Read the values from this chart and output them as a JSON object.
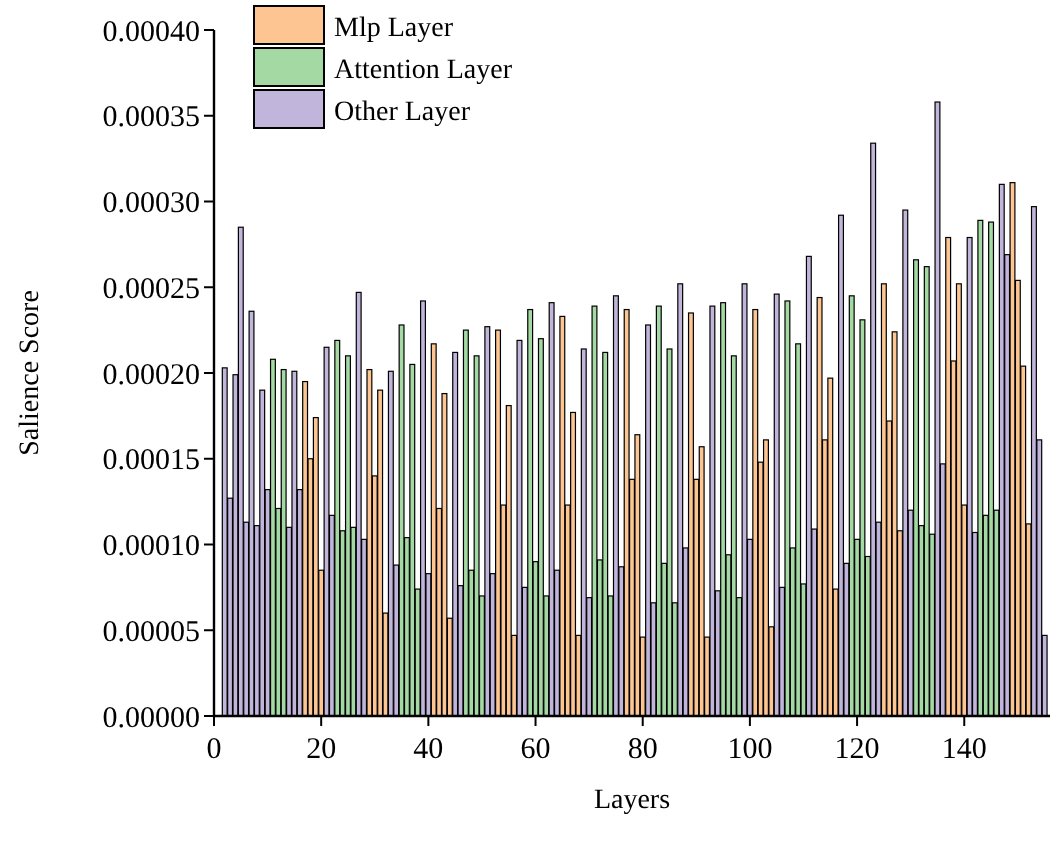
{
  "chart_data": {
    "type": "bar",
    "xlabel": "Layers",
    "ylabel": "Salience Score",
    "xlim": [
      0,
      156
    ],
    "xticks": [
      0,
      20,
      40,
      60,
      80,
      100,
      120,
      140
    ],
    "ylim": [
      0,
      0.0004
    ],
    "yticks": [
      {
        "value": 0,
        "label": "0.00000"
      },
      {
        "value": 5e-05,
        "label": "0.00005"
      },
      {
        "value": 0.0001,
        "label": "0.00010"
      },
      {
        "value": 0.00015,
        "label": "0.00015"
      },
      {
        "value": 0.0002,
        "label": "0.00020"
      },
      {
        "value": 0.00025,
        "label": "0.00025"
      },
      {
        "value": 0.0003,
        "label": "0.00030"
      },
      {
        "value": 0.00035,
        "label": "0.00035"
      },
      {
        "value": 0.0004,
        "label": "0.00040"
      }
    ],
    "legend": "top left",
    "grid": false,
    "series": [
      {
        "name": "Mlp Layer",
        "color": "#fcc592",
        "x": [
          17,
          18,
          19,
          20,
          29,
          30,
          31,
          32,
          41,
          42,
          43,
          44,
          53,
          54,
          55,
          56,
          65,
          66,
          67,
          68,
          77,
          78,
          79,
          80,
          89,
          90,
          91,
          92,
          101,
          102,
          103,
          104,
          113,
          114,
          115,
          116,
          125,
          126,
          127,
          128,
          137,
          138,
          139,
          140,
          149,
          150,
          151,
          152
        ],
        "values": [
          0.000195,
          0.00015,
          0.000174,
          8.5e-05,
          0.000202,
          0.00014,
          0.00019,
          6e-05,
          0.000217,
          0.000121,
          0.000188,
          5.7e-05,
          0.000225,
          0.000123,
          0.000181,
          4.7e-05,
          0.000233,
          0.000123,
          0.000177,
          4.7e-05,
          0.000237,
          0.000138,
          0.000164,
          4.6e-05,
          0.000235,
          0.000138,
          0.000157,
          4.6e-05,
          0.000237,
          0.000148,
          0.000161,
          5.2e-05,
          0.000244,
          0.000161,
          0.000197,
          7.4e-05,
          0.000252,
          0.000172,
          0.000224,
          0.000108,
          0.000279,
          0.000207,
          0.000252,
          0.000123,
          0.000311,
          0.000254,
          0.000204,
          0.000112
        ]
      },
      {
        "name": "Attention Layer",
        "color": "#a4d9a4",
        "x": [
          11,
          12,
          13,
          23,
          24,
          25,
          26,
          35,
          36,
          37,
          38,
          47,
          48,
          49,
          50,
          59,
          60,
          61,
          62,
          71,
          72,
          73,
          74,
          83,
          84,
          85,
          86,
          95,
          96,
          97,
          98,
          107,
          108,
          109,
          110,
          119,
          120,
          121,
          122,
          131,
          132,
          133,
          134,
          143,
          144,
          145,
          146
        ],
        "values": [
          0.000208,
          0.000121,
          0.000202,
          0.000219,
          0.000108,
          0.00021,
          0.00011,
          0.000228,
          0.000104,
          0.000205,
          7.4e-05,
          0.000225,
          8.5e-05,
          0.00021,
          7e-05,
          0.000237,
          9e-05,
          0.00022,
          7e-05,
          0.000239,
          9.1e-05,
          0.000212,
          7e-05,
          0.000239,
          8.9e-05,
          0.000214,
          6.6e-05,
          0.000241,
          9.4e-05,
          0.00021,
          6.9e-05,
          0.000242,
          9.8e-05,
          0.000217,
          7.7e-05,
          0.000245,
          0.000103,
          0.000231,
          9.3e-05,
          0.000266,
          0.000111,
          0.000262,
          0.000106,
          0.000289,
          0.000117,
          0.000288,
          0.00012
        ]
      },
      {
        "name": "Other Layer",
        "color": "#c1b5dc",
        "x": [
          2,
          3,
          4,
          5,
          6,
          7,
          8,
          9,
          10,
          14,
          15,
          16,
          21,
          22,
          27,
          28,
          33,
          34,
          39,
          40,
          45,
          46,
          51,
          52,
          57,
          58,
          63,
          64,
          69,
          70,
          75,
          76,
          81,
          82,
          87,
          88,
          93,
          94,
          99,
          100,
          105,
          106,
          111,
          112,
          117,
          118,
          123,
          124,
          129,
          130,
          135,
          136,
          141,
          142,
          147,
          148,
          153,
          154,
          155
        ],
        "values": [
          0.000203,
          0.000127,
          0.000199,
          0.000285,
          0.000113,
          0.000236,
          0.000111,
          0.00019,
          0.000132,
          0.00011,
          0.000201,
          0.000132,
          0.000215,
          0.000117,
          0.000247,
          0.000103,
          0.000201,
          8.8e-05,
          0.000242,
          8.3e-05,
          0.000212,
          7.6e-05,
          0.000227,
          8.3e-05,
          0.000219,
          7.5e-05,
          0.000241,
          8.5e-05,
          0.000214,
          6.9e-05,
          0.000245,
          8.7e-05,
          0.000228,
          6.6e-05,
          0.000252,
          9.8e-05,
          0.000239,
          7.3e-05,
          0.000252,
          0.000103,
          0.000246,
          7.5e-05,
          0.000268,
          0.000109,
          0.000292,
          8.9e-05,
          0.000334,
          0.000113,
          0.000295,
          0.00012,
          0.000358,
          0.000147,
          0.000279,
          0.000107,
          0.00031,
          0.000269,
          0.000297,
          0.000161,
          4.7e-05
        ]
      }
    ]
  }
}
